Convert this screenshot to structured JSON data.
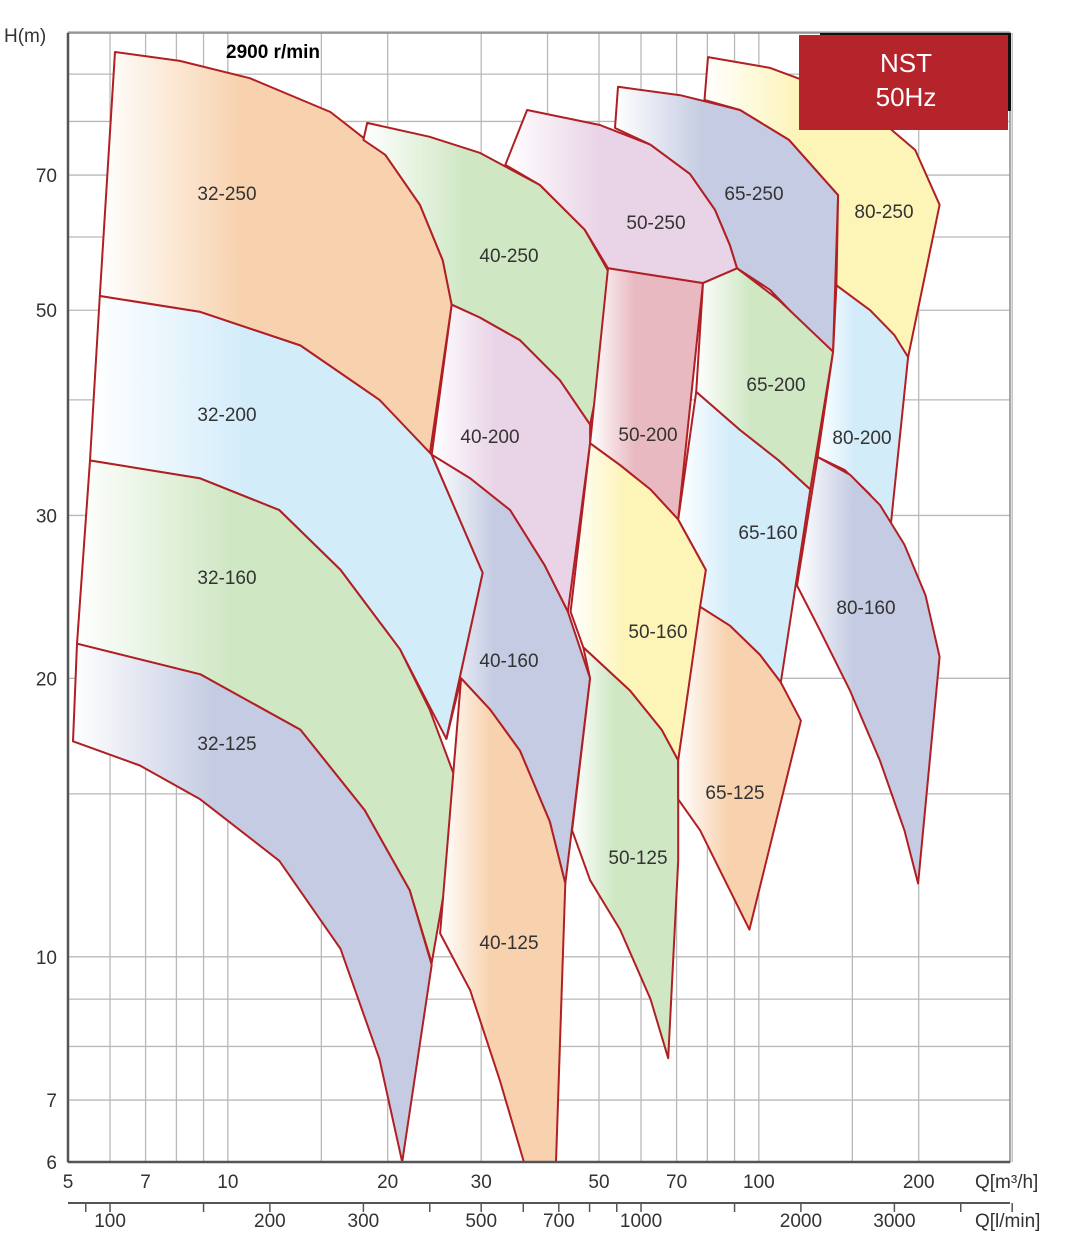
{
  "chart_data": {
    "type": "area",
    "title": "2900 r/min",
    "badge": {
      "line1": "NST",
      "line2": "50Hz",
      "color": "#b5232b"
    },
    "xlabel": "Q[m³/h]",
    "xlabel2": "Q[l/min]",
    "ylabel": "H(m)",
    "x_scale": "log",
    "y_scale": "log",
    "xlim": [
      5,
      300
    ],
    "ylim": [
      6,
      100
    ],
    "grid": true,
    "x_grid": [
      5,
      6,
      7,
      8,
      9,
      10,
      15,
      20,
      30,
      40,
      50,
      60,
      70,
      80,
      90,
      100,
      150,
      200,
      300
    ],
    "y_grid": [
      6,
      7,
      8,
      9,
      10,
      15,
      20,
      30,
      40,
      50,
      60,
      70,
      80,
      90,
      100
    ],
    "x_ticks": [
      "5",
      "7",
      "10",
      "20",
      "30",
      "50",
      "70",
      "100",
      "200"
    ],
    "y_ticks": [
      "70",
      "50",
      "30",
      "20",
      "10",
      "7",
      "6"
    ],
    "x2_ticks": [
      "100",
      "200",
      "300",
      "500",
      "700",
      "1000",
      "2000",
      "3000"
    ],
    "x2_minor": [
      90,
      100,
      150,
      200,
      300,
      400,
      500,
      600,
      700,
      800,
      900,
      1000,
      1500,
      2000,
      3000,
      4000,
      5000
    ],
    "edge_color": "#b01f24",
    "palette": {
      "orange": "#f8d2ae",
      "lightblue": "#d3ecfa",
      "green": "#cfe7c3",
      "slate": "#c4cbe2",
      "pink": "#e9d4e7",
      "rose": "#e8b9c0",
      "yellow": "#fdf4b8"
    },
    "regions": [
      {
        "name": "32-250",
        "color": "orange",
        "points": [
          [
            6.13,
            95.1
          ],
          [
            8.12,
            93
          ],
          [
            11.0,
            89.1
          ],
          [
            15.6,
            81.9
          ],
          [
            19.8,
            73.6
          ],
          [
            23.0,
            65.0
          ],
          [
            25.4,
            56.6
          ],
          [
            26.4,
            50.7
          ],
          [
            24.0,
            34.9
          ],
          [
            19.3,
            40.0
          ],
          [
            13.7,
            45.8
          ],
          [
            8.87,
            49.8
          ],
          [
            5.74,
            51.8
          ]
        ]
      },
      {
        "name": "32-200",
        "color": "lightblue",
        "points": [
          [
            5.74,
            51.8
          ],
          [
            8.87,
            49.8
          ],
          [
            13.7,
            45.8
          ],
          [
            19.3,
            40.0
          ],
          [
            24.2,
            34.9
          ],
          [
            30.2,
            26.0
          ],
          [
            25.8,
            17.2
          ],
          [
            21.1,
            21.5
          ],
          [
            16.3,
            26.2
          ],
          [
            12.5,
            30.4
          ],
          [
            8.87,
            32.9
          ],
          [
            5.5,
            34.4
          ]
        ]
      },
      {
        "name": "32-160",
        "color": "green",
        "points": [
          [
            5.5,
            34.4
          ],
          [
            8.87,
            32.9
          ],
          [
            12.5,
            30.4
          ],
          [
            16.3,
            26.2
          ],
          [
            21.1,
            21.5
          ],
          [
            24.0,
            18.5
          ],
          [
            27.5,
            15.0
          ],
          [
            24.2,
            9.85
          ],
          [
            22.0,
            11.8
          ],
          [
            18.1,
            14.4
          ],
          [
            13.7,
            17.6
          ],
          [
            8.87,
            20.2
          ],
          [
            5.2,
            21.8
          ]
        ]
      },
      {
        "name": "32-125",
        "color": "slate",
        "points": [
          [
            5.2,
            21.8
          ],
          [
            8.87,
            20.2
          ],
          [
            13.7,
            17.6
          ],
          [
            18.1,
            14.4
          ],
          [
            22.0,
            11.8
          ],
          [
            24.2,
            9.8
          ],
          [
            21.3,
            6.0
          ],
          [
            19.3,
            7.75
          ],
          [
            16.3,
            10.2
          ],
          [
            12.5,
            12.7
          ],
          [
            8.87,
            14.8
          ],
          [
            6.83,
            16.1
          ],
          [
            5.11,
            17.1
          ]
        ]
      },
      {
        "name": "40-250",
        "color": "green",
        "points": [
          [
            18.3,
            79.7
          ],
          [
            24.0,
            77.0
          ],
          [
            29.8,
            74.0
          ],
          [
            38.7,
            68.3
          ],
          [
            47.0,
            61.1
          ],
          [
            54.3,
            52.8
          ],
          [
            48.1,
            37.6
          ],
          [
            42.2,
            42.0
          ],
          [
            35.5,
            46.4
          ],
          [
            29.8,
            49.1
          ],
          [
            26.4,
            50.7
          ],
          [
            25.4,
            56.6
          ],
          [
            23.0,
            65.0
          ],
          [
            19.8,
            73.6
          ],
          [
            18.0,
            76.4
          ]
        ]
      },
      {
        "name": "40-200",
        "color": "pink",
        "points": [
          [
            26.4,
            50.7
          ],
          [
            29.8,
            49.1
          ],
          [
            35.5,
            46.4
          ],
          [
            42.2,
            42.0
          ],
          [
            48.1,
            37.6
          ],
          [
            48.1,
            35.9
          ],
          [
            43.7,
            23.6
          ],
          [
            39.5,
            26.5
          ],
          [
            34.0,
            30.4
          ],
          [
            28.6,
            32.9
          ],
          [
            24.2,
            34.9
          ]
        ]
      },
      {
        "name": "40-160",
        "color": "slate",
        "points": [
          [
            24.2,
            34.9
          ],
          [
            28.6,
            32.9
          ],
          [
            34.0,
            30.4
          ],
          [
            39.5,
            26.5
          ],
          [
            43.7,
            23.6
          ],
          [
            48.1,
            20.0
          ],
          [
            43.2,
            12.0
          ],
          [
            40.4,
            14.0
          ],
          [
            35.5,
            16.7
          ],
          [
            31.2,
            18.5
          ],
          [
            27.5,
            20.0
          ],
          [
            25.8,
            17.2
          ],
          [
            30.2,
            26.0
          ]
        ]
      },
      {
        "name": "40-125",
        "color": "orange",
        "points": [
          [
            27.5,
            20.0
          ],
          [
            31.2,
            18.5
          ],
          [
            35.5,
            16.7
          ],
          [
            40.4,
            14.0
          ],
          [
            43.2,
            12.0
          ],
          [
            41.5,
            6.0
          ],
          [
            36.1,
            6.0
          ],
          [
            32.5,
            7.36
          ],
          [
            28.6,
            9.2
          ],
          [
            25.1,
            10.6
          ]
        ]
      },
      {
        "name": "50-250",
        "color": "pink",
        "points": [
          [
            36.6,
            82.3
          ],
          [
            50.2,
            79.3
          ],
          [
            62.5,
            75.5
          ],
          [
            74.2,
            70.2
          ],
          [
            82.7,
            64.2
          ],
          [
            88.2,
            58.8
          ],
          [
            91.0,
            55.5
          ],
          [
            78.5,
            53.5
          ],
          [
            52,
            55.5
          ],
          [
            47.0,
            61.1
          ],
          [
            38.7,
            68.3
          ],
          [
            33.3,
            71.8
          ]
        ]
      },
      {
        "name": "50-200",
        "color": "rose",
        "points": [
          [
            52,
            55.5
          ],
          [
            78.5,
            53.5
          ],
          [
            70.5,
            29.7
          ],
          [
            62.5,
            32.0
          ],
          [
            54.8,
            34.0
          ],
          [
            48.1,
            35.9
          ]
        ]
      },
      {
        "name": "50-160",
        "color": "yellow",
        "points": [
          [
            48.1,
            35.9
          ],
          [
            54.8,
            34.0
          ],
          [
            62.5,
            32.0
          ],
          [
            70.5,
            29.7
          ],
          [
            79.5,
            26.2
          ],
          [
            70.5,
            16.3
          ],
          [
            65.6,
            17.6
          ],
          [
            57.2,
            19.4
          ],
          [
            46.7,
            21.6
          ],
          [
            44.2,
            23.6
          ]
        ]
      },
      {
        "name": "50-125",
        "color": "green",
        "points": [
          [
            46.7,
            21.6
          ],
          [
            57.2,
            19.4
          ],
          [
            65.6,
            17.6
          ],
          [
            70.5,
            16.3
          ],
          [
            70.5,
            12.7
          ],
          [
            67.5,
            7.77
          ],
          [
            62.5,
            9.0
          ],
          [
            54.8,
            10.7
          ],
          [
            48.1,
            12.1
          ],
          [
            44.5,
            13.7
          ],
          [
            48.1,
            20.0
          ]
        ]
      },
      {
        "name": "65-250",
        "color": "slate",
        "points": [
          [
            54.3,
            87.2
          ],
          [
            71.1,
            85.4
          ],
          [
            92.2,
            82.3
          ],
          [
            114,
            76.4
          ],
          [
            141,
            66.6
          ],
          [
            138,
            45.1
          ],
          [
            119,
            48.8
          ],
          [
            105,
            52.6
          ],
          [
            91.0,
            55.5
          ],
          [
            88.2,
            58.8
          ],
          [
            82.7,
            64.2
          ],
          [
            74.2,
            70.2
          ],
          [
            62.5,
            75.5
          ],
          [
            53.6,
            78.7
          ]
        ]
      },
      {
        "name": "65-200",
        "color": "green",
        "points": [
          [
            78.5,
            53.5
          ],
          [
            91.0,
            55.5
          ],
          [
            109,
            51.3
          ],
          [
            138,
            45.1
          ],
          [
            125,
            32.0
          ],
          [
            109,
            34.4
          ],
          [
            92.2,
            37.1
          ],
          [
            76.2,
            40.8
          ]
        ]
      },
      {
        "name": "65-160",
        "color": "lightblue",
        "points": [
          [
            76.2,
            40.8
          ],
          [
            92.2,
            37.1
          ],
          [
            109,
            34.4
          ],
          [
            125,
            32.0
          ],
          [
            110,
            19.8
          ],
          [
            100.5,
            21.2
          ],
          [
            88.2,
            22.8
          ],
          [
            77.5,
            23.9
          ],
          [
            79.5,
            26.2
          ],
          [
            70.5,
            29.7
          ]
        ]
      },
      {
        "name": "65-125",
        "color": "orange",
        "points": [
          [
            77.5,
            23.9
          ],
          [
            88.2,
            22.8
          ],
          [
            100.5,
            21.2
          ],
          [
            110,
            19.8
          ],
          [
            120,
            18.0
          ],
          [
            96,
            10.7
          ],
          [
            84.5,
            12.4
          ],
          [
            77.5,
            13.7
          ],
          [
            70.5,
            14.8
          ],
          [
            70.5,
            16.3
          ]
        ]
      },
      {
        "name": "80-250",
        "color": "yellow",
        "points": [
          [
            80.2,
            93.9
          ],
          [
            105,
            91.4
          ],
          [
            136,
            86.5
          ],
          [
            169,
            80.3
          ],
          [
            197,
            74.5
          ],
          [
            219,
            65.0
          ],
          [
            191,
            44.5
          ],
          [
            169,
            48.2
          ],
          [
            152,
            51.3
          ],
          [
            140,
            53.2
          ],
          [
            141,
            66.6
          ],
          [
            114,
            76.4
          ],
          [
            92.2,
            82.3
          ],
          [
            79,
            84.4
          ]
        ]
      },
      {
        "name": "80-200",
        "color": "lightblue",
        "points": [
          [
            140,
            53.2
          ],
          [
            162,
            50.0
          ],
          [
            180,
            47.0
          ],
          [
            191,
            44.5
          ],
          [
            177,
            29.1
          ],
          [
            162,
            31.6
          ],
          [
            145,
            33.6
          ],
          [
            129,
            34.7
          ],
          [
            138,
            45.1
          ]
        ]
      },
      {
        "name": "80-160",
        "color": "slate",
        "points": [
          [
            129,
            34.7
          ],
          [
            148.5,
            33.2
          ],
          [
            169,
            30.8
          ],
          [
            188,
            27.9
          ],
          [
            206,
            24.6
          ],
          [
            219,
            21.1
          ],
          [
            199.5,
            12.0
          ],
          [
            188,
            13.7
          ],
          [
            169,
            16.3
          ],
          [
            148.5,
            19.4
          ],
          [
            130,
            22.6
          ],
          [
            118,
            25.2
          ]
        ]
      }
    ]
  }
}
